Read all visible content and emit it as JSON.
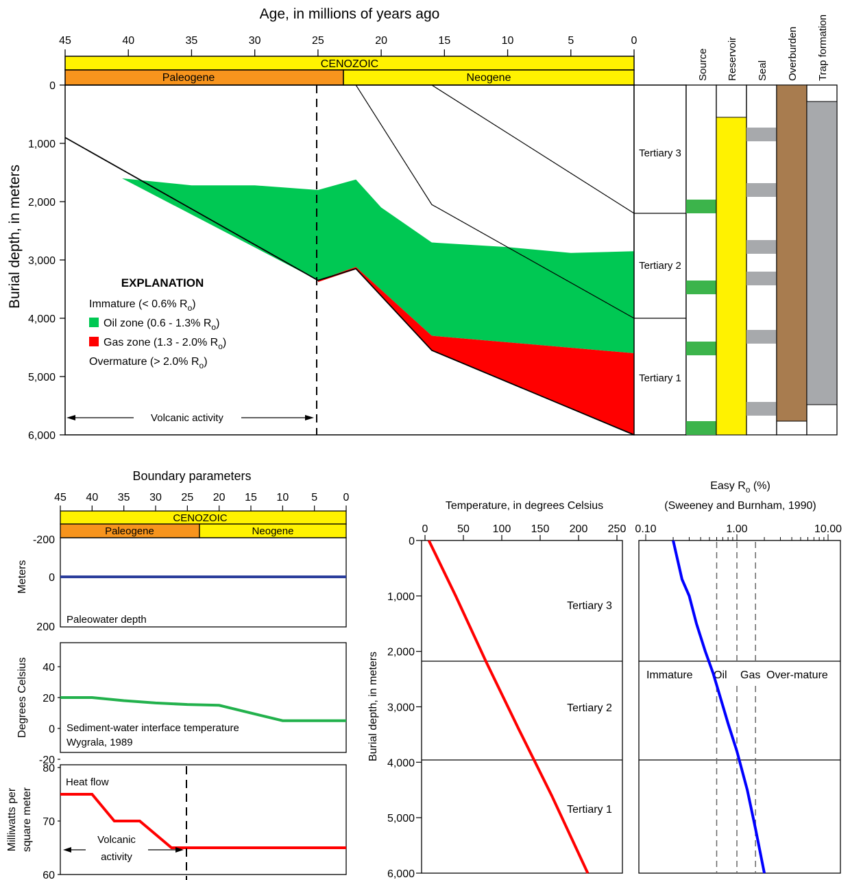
{
  "main_chart": {
    "x_title": "Age, in millions of years ago",
    "x_ticks": [
      "45",
      "40",
      "35",
      "30",
      "25",
      "20",
      "15",
      "10",
      "5",
      "0"
    ],
    "y_title": "Burial depth, in meters",
    "y_ticks": [
      "0",
      "1,000",
      "2,000",
      "3,000",
      "4,000",
      "5,000",
      "6,000"
    ],
    "era": "CENOZOIC",
    "periods": [
      {
        "name": "Paleogene",
        "color": "#f7941d"
      },
      {
        "name": "Neogene",
        "color": "#fff200"
      }
    ],
    "legend": {
      "title": "EXPLANATION",
      "immature": "Immature (< 0.6% R",
      "oil": "Oil zone (0.6 - 1.3% R",
      "gas": "Gas zone (1.3 - 2.0% R",
      "overmature": "Overmature (> 2.0% R",
      "subscript": "o",
      "suffix": ")",
      "oil_color": "#00c853",
      "gas_color": "#ff0000"
    },
    "volcanic_label": "Volcanic activity",
    "units": [
      "Tertiary 3",
      "Tertiary 2",
      "Tertiary 1"
    ],
    "elements": [
      "Source",
      "Reservoir",
      "Seal",
      "Overburden",
      "Trap formation"
    ],
    "element_colors": {
      "source": "#3cb44b",
      "reservoir": "#fff200",
      "seal": "#a7a9ac",
      "overburden": "#a87c4f",
      "trap": "#a7a9ac"
    }
  },
  "chart_data": [
    {
      "type": "area",
      "title": "Age, in millions of years ago",
      "xlabel": "Age, in millions of years ago",
      "ylabel": "Burial depth, in meters",
      "xlim": [
        45,
        0
      ],
      "ylim": [
        6000,
        0
      ],
      "series": [
        {
          "name": "Tertiary 1 base",
          "x": [
            45,
            25,
            22,
            16,
            0
          ],
          "y": [
            900,
            3350,
            3150,
            4550,
            6300
          ]
        },
        {
          "name": "Tertiary 2 base",
          "x": [
            22,
            16,
            0
          ],
          "y": [
            0,
            2050,
            4000
          ]
        },
        {
          "name": "Tertiary 3 base",
          "x": [
            16,
            0
          ],
          "y": [
            0,
            2200
          ]
        },
        {
          "name": "Oil zone (0.6 - 1.3% Ro)",
          "top_x": [
            40.5,
            35,
            30,
            25,
            22,
            20,
            16,
            10,
            5,
            0
          ],
          "top_y": [
            1600,
            1720,
            1720,
            1800,
            1620,
            2100,
            2700,
            2780,
            2880,
            2850
          ],
          "bottom_x": [
            40.5,
            25,
            22,
            16,
            0
          ],
          "bottom_y": [
            1600,
            3350,
            3120,
            4300,
            4600
          ]
        },
        {
          "name": "Gas zone (1.3 - 2.0% Ro)",
          "top_x": [
            25,
            22,
            16,
            0
          ],
          "top_y": [
            3350,
            3120,
            4300,
            4600
          ],
          "bottom_x": [
            25,
            22,
            16,
            0
          ],
          "bottom_y": [
            3380,
            3160,
            4560,
            6000
          ]
        }
      ],
      "annotations": [
        "Volcanic activity"
      ],
      "volcanic_end_age": 25
    },
    {
      "type": "line",
      "title": "Boundary parameters",
      "xlim": [
        45,
        0
      ],
      "panels": [
        {
          "name": "Paleowater depth",
          "ylabel": "Meters",
          "ylim": [
            200,
            -200
          ],
          "y_ticks": [
            "-200",
            "0",
            "200"
          ],
          "x": [
            45,
            0
          ],
          "y": [
            0,
            0
          ],
          "color": "#2b3e9c"
        },
        {
          "name": "Sediment-water interface temperature",
          "note": "Wygrala, 1989",
          "ylabel": "Degrees Celsius",
          "ylim": [
            -20,
            40
          ],
          "y_ticks": [
            "40",
            "20",
            "0",
            "-20"
          ],
          "x": [
            45,
            40,
            35,
            30,
            25,
            20,
            10,
            0
          ],
          "y": [
            20,
            20,
            18,
            16.5,
            15.5,
            15,
            5,
            5
          ],
          "color": "#22b14c"
        },
        {
          "name": "Heat flow",
          "ylabel": "Milliwatts per square meter",
          "ylim": [
            60,
            80
          ],
          "y_ticks": [
            "80",
            "70",
            "60"
          ],
          "x": [
            45,
            40,
            36.5,
            32.5,
            27.5,
            25,
            0
          ],
          "y": [
            75,
            75,
            70,
            70,
            65,
            65,
            65
          ],
          "color": "#ff0000",
          "annotation": "Volcanic activity"
        }
      ]
    },
    {
      "type": "line",
      "title": "",
      "xlabel": "Temperature, in degrees Celsius",
      "ylabel": "Burial depth, in meters",
      "x_ticks": [
        "0",
        "50",
        "100",
        "150",
        "200",
        "250"
      ],
      "y_ticks": [
        "0",
        "1,000",
        "2,000",
        "3,000",
        "4,000",
        "5,000",
        "6,000"
      ],
      "xlim": [
        0,
        250
      ],
      "ylim": [
        6000,
        0
      ],
      "x": [
        5,
        40,
        80,
        122,
        165,
        212
      ],
      "y": [
        0,
        1000,
        2200,
        3400,
        4600,
        6000
      ],
      "color": "#ff0000",
      "units": [
        "Tertiary 3",
        "Tertiary 2",
        "Tertiary 1"
      ],
      "unit_boundaries": [
        2200,
        4000
      ]
    },
    {
      "type": "line",
      "title": "Easy R",
      "title_subscript": "o",
      "title_suffix": " (%)",
      "subtitle": "(Sweeney and Burnham, 1990)",
      "scale": "log",
      "x_ticks": [
        "0.10",
        "1.00",
        "10.00"
      ],
      "xlim": [
        0.1,
        10
      ],
      "ylim": [
        6000,
        0
      ],
      "x": [
        0.2,
        0.22,
        0.25,
        0.3,
        0.36,
        0.45,
        0.55,
        0.65,
        0.8,
        1.0,
        1.3,
        1.6,
        2.0
      ],
      "y": [
        0,
        300,
        700,
        1000,
        1500,
        2000,
        2400,
        2800,
        3300,
        3800,
        4500,
        5200,
        6000
      ],
      "color": "#0000ff",
      "thresholds": [
        0.6,
        1.0,
        1.6
      ],
      "zones": [
        "Immature",
        "Oil",
        "Gas",
        "Over-mature"
      ],
      "unit_boundaries": [
        2200,
        4000
      ]
    }
  ]
}
